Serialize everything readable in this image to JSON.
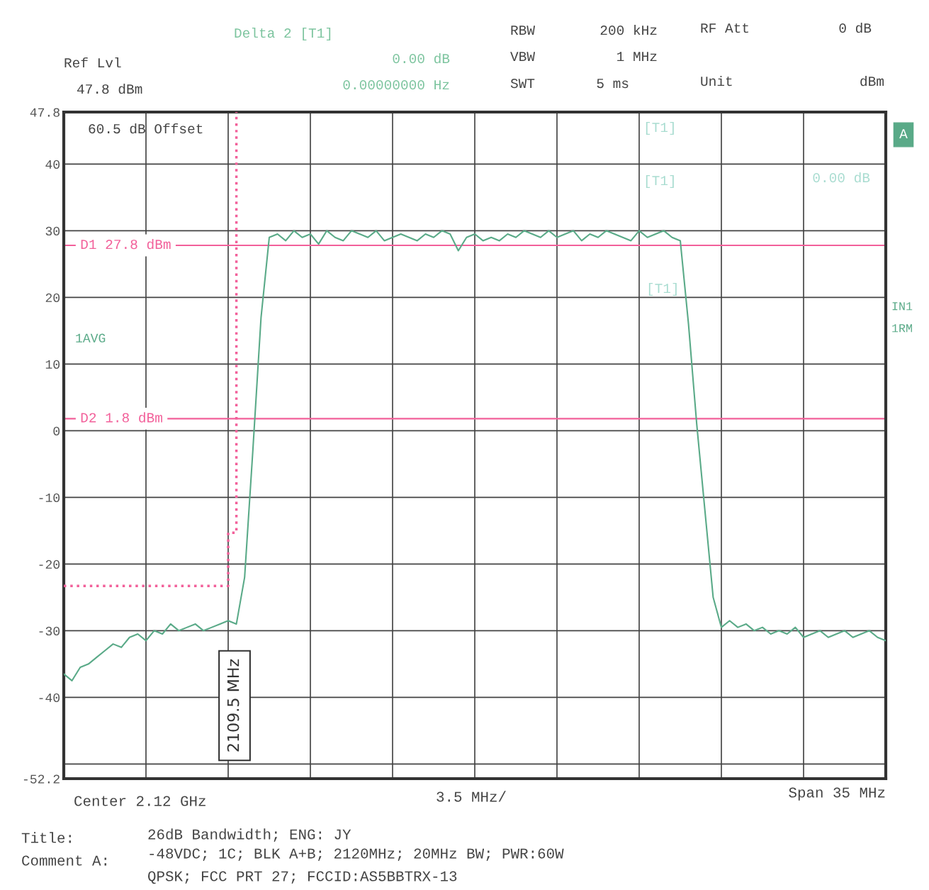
{
  "chart_data": {
    "type": "line",
    "categories": [
      null,
      null,
      null,
      null,
      null,
      null,
      null,
      null,
      null,
      null,
      null,
      null,
      null,
      null,
      null,
      null,
      null,
      null,
      null,
      null,
      null,
      null,
      null,
      null,
      null,
      null,
      null,
      null,
      null,
      null,
      null,
      null,
      null,
      null,
      null,
      null,
      null,
      null,
      null,
      null,
      null,
      null,
      null,
      null,
      null,
      null,
      null,
      null,
      null,
      null,
      null,
      null,
      null,
      null,
      null,
      null,
      null,
      null,
      null,
      null,
      null,
      null,
      null,
      null,
      null,
      null,
      null,
      null,
      null,
      null,
      null,
      null,
      null,
      null,
      null,
      null,
      null,
      null,
      null,
      null,
      null,
      null,
      null,
      null,
      null,
      null,
      null,
      null,
      null,
      null,
      null,
      null,
      null,
      null,
      null,
      null,
      null,
      null,
      null,
      null,
      null
    ],
    "ylim": [
      -52.2,
      47.8
    ],
    "yticks": [
      {
        "value": -52.2,
        "label": "-52.2"
      },
      {
        "value": -50,
        "label": null
      },
      -40,
      -30,
      -20,
      -10,
      0,
      10,
      20,
      30,
      40,
      {
        "value": 47.8,
        "label": "47.8"
      }
    ],
    "grid": true,
    "series": [
      {
        "color": "#5aaa88",
        "line_style": "solid",
        "values": [
          -36.5,
          -37.5,
          -35.5,
          -35,
          -34,
          -33,
          -32,
          -32.5,
          -31,
          -30.5,
          -31.5,
          -30,
          -30.5,
          -29,
          -30,
          -29.5,
          -29,
          -30,
          -29.5,
          -29,
          -28.5,
          -29,
          -22,
          -3,
          17,
          29,
          29.5,
          28.5,
          30,
          29,
          29.5,
          28,
          30,
          29,
          28.5,
          30,
          29.5,
          29,
          30,
          28.5,
          29,
          29.5,
          29,
          28.5,
          29.5,
          29,
          30,
          29.5,
          27,
          29,
          29.5,
          28.5,
          29,
          28.5,
          29.5,
          29,
          30,
          29.5,
          29,
          30,
          29,
          29.5,
          30,
          28.5,
          29.5,
          29,
          30,
          29.5,
          29,
          28.5,
          30,
          29,
          29.5,
          30,
          29,
          28.5,
          16,
          1,
          -12,
          -25,
          -29.5,
          -28.5,
          -29.5,
          -29,
          -30,
          -29.5,
          -30.5,
          -30,
          -30.5,
          -29.5,
          -31,
          -30.5,
          -30,
          -31,
          -30.5,
          -30,
          -31,
          -30.5,
          -30,
          -31,
          -31.5
        ]
      },
      {
        "type": "step",
        "color": "#f2609a",
        "line_style": "dotted",
        "values": [
          -23.3,
          -23.3,
          -23.3,
          -23.3,
          -23.3,
          -23.3,
          -23.3,
          -23.3,
          -23.3,
          -23.3,
          -23.3,
          -23.3,
          -23.3,
          -23.3,
          -23.3,
          -23.3,
          -23.3,
          -23.3,
          -23.3,
          -23.3,
          -15.3,
          47.8,
          null,
          null,
          null,
          null,
          null,
          null,
          null,
          null,
          null,
          null,
          null,
          null,
          null,
          null,
          null,
          null,
          null,
          null,
          null,
          null,
          null,
          null,
          null,
          null,
          null,
          null,
          null,
          null,
          null,
          null,
          null,
          null,
          null,
          null,
          null,
          null,
          null,
          null,
          null,
          null,
          null,
          null,
          null,
          null,
          null,
          null,
          null,
          null,
          null,
          null,
          null,
          null,
          null,
          null,
          null,
          null,
          null,
          null,
          null,
          null,
          null,
          null,
          null,
          null,
          null,
          null,
          null,
          null,
          null,
          null,
          null,
          null,
          null,
          null,
          null,
          null,
          null,
          null,
          null
        ]
      }
    ],
    "ref_lines": [
      {
        "axis": "y",
        "value": 27.8,
        "label": "D1 27.8 dBm",
        "color": "#f2609a"
      },
      {
        "axis": "y",
        "value": 1.8,
        "label": "D2 1.8 dBm",
        "color": "#f2609a"
      }
    ],
    "annotations": [
      "2109.5 MHz",
      "Ref Lvl",
      "47.8 dBm",
      "Delta 2 [T1]",
      "0.00 dB",
      "0.00000000 Hz",
      "RBW",
      "200 kHz",
      "VBW",
      "1 MHz",
      "SWT",
      "5 ms",
      "RF Att",
      "0 dB",
      "Unit",
      "dBm",
      "60.5 dB Offset",
      "1AVG",
      "A",
      "IN1",
      "1RM",
      "Center 2.12 GHz",
      "3.5 MHz/",
      "Span 35 MHz",
      "Title:",
      "26dB Bandwidth; ENG: JY",
      "Comment A:",
      "-48VDC; 1C; BLK A+B; 2120MHz; 20MHz BW; PWR:60W",
      "QPSK; FCC PRT 27; FCCID:AS5BBTRX-13",
      "[T1]",
      "[T1]",
      "0.00 dB",
      "[T1]"
    ]
  }
}
